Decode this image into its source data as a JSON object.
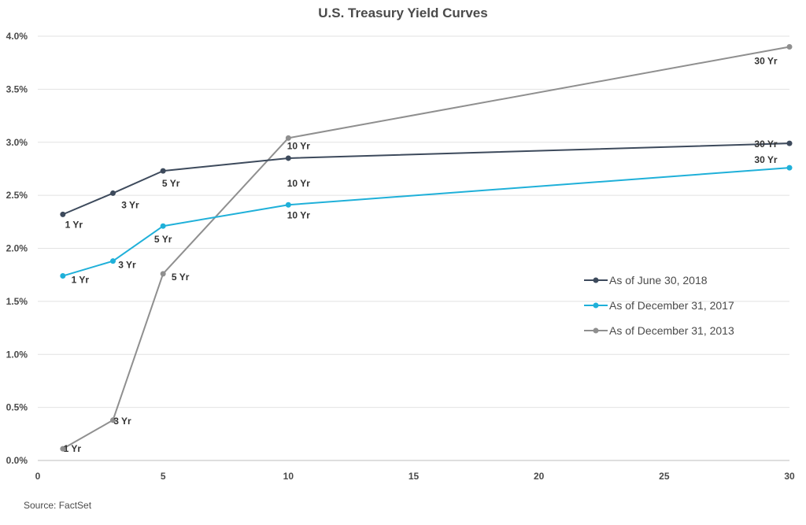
{
  "chart_data": {
    "type": "line",
    "title": "U.S. Treasury Yield Curves",
    "xlabel": "",
    "ylabel": "",
    "xlim": [
      0,
      30
    ],
    "ylim": [
      0,
      4
    ],
    "x_ticks": [
      "0",
      "5",
      "10",
      "15",
      "20",
      "25",
      "30"
    ],
    "y_ticks": [
      "0.0%",
      "0.5%",
      "1.0%",
      "1.5%",
      "2.0%",
      "2.5%",
      "3.0%",
      "3.5%",
      "4.0%"
    ],
    "grid": true,
    "legend_position": "center-right",
    "series": [
      {
        "name": "As of June 30, 2018",
        "color": "#3d4a5c",
        "points": [
          {
            "x": 1,
            "y": 2.32,
            "label": "1 Yr"
          },
          {
            "x": 3,
            "y": 2.52,
            "label": "3 Yr"
          },
          {
            "x": 5,
            "y": 2.73,
            "label": "5 Yr"
          },
          {
            "x": 10,
            "y": 2.85,
            "label": "10 Yr"
          },
          {
            "x": 30,
            "y": 2.99,
            "label": "30 Yr"
          }
        ]
      },
      {
        "name": "As of December 31, 2017",
        "color": "#1fb0d9",
        "points": [
          {
            "x": 1,
            "y": 1.74,
            "label": "1 Yr"
          },
          {
            "x": 3,
            "y": 1.88,
            "label": "3 Yr"
          },
          {
            "x": 5,
            "y": 2.21,
            "label": "5 Yr"
          },
          {
            "x": 10,
            "y": 2.41,
            "label": "10 Yr"
          },
          {
            "x": 30,
            "y": 2.76,
            "label": "30 Yr"
          }
        ]
      },
      {
        "name": "As of December 31, 2013",
        "color": "#8f8f8f",
        "points": [
          {
            "x": 1,
            "y": 0.11,
            "label": "1 Yr"
          },
          {
            "x": 3,
            "y": 0.38,
            "label": "3 Yr"
          },
          {
            "x": 5,
            "y": 1.76,
            "label": "5 Yr"
          },
          {
            "x": 10,
            "y": 3.04,
            "label": "10 Yr"
          },
          {
            "x": 30,
            "y": 3.9,
            "label": "30 Yr"
          }
        ]
      }
    ]
  },
  "source": "Source: FactSet"
}
